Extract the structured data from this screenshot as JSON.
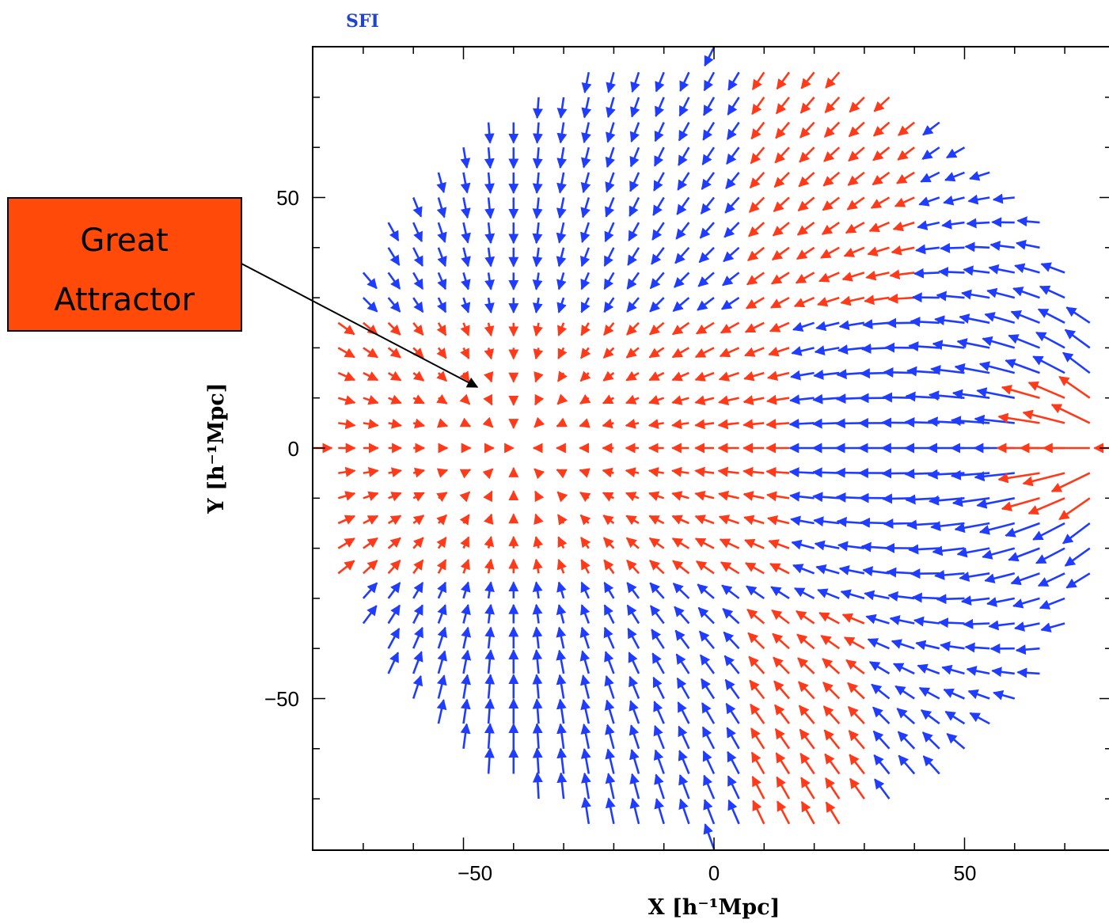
{
  "chart_data": {
    "type": "vector-field",
    "title": "SFI",
    "xlabel": "X [h⁻¹Mpc]",
    "ylabel": "Y [h⁻¹Mpc]",
    "xlim": [
      -80,
      80
    ],
    "ylim": [
      -80,
      80
    ],
    "x_ticks": [
      -50,
      0,
      50
    ],
    "y_ticks": [
      -50,
      0,
      50
    ],
    "x_tick_labels": [
      "−50",
      "0",
      "50"
    ],
    "y_tick_labels": [
      "−50",
      "0",
      "50"
    ],
    "grid": false,
    "field": {
      "grid_spacing": 5,
      "region_radius": 80,
      "attractor_center": [
        -40,
        0
      ],
      "repeller_center": [
        80,
        0
      ],
      "color_positive": "#ff3a1a",
      "color_negative": "#1f3cff"
    },
    "annotations": [
      {
        "text_lines": [
          "Great",
          "Attractor"
        ],
        "points_to": [
          -49,
          13
        ],
        "box_color": "#ff4a0a"
      }
    ],
    "colors": {
      "title": "#2244cc",
      "frame": "#000000"
    }
  }
}
